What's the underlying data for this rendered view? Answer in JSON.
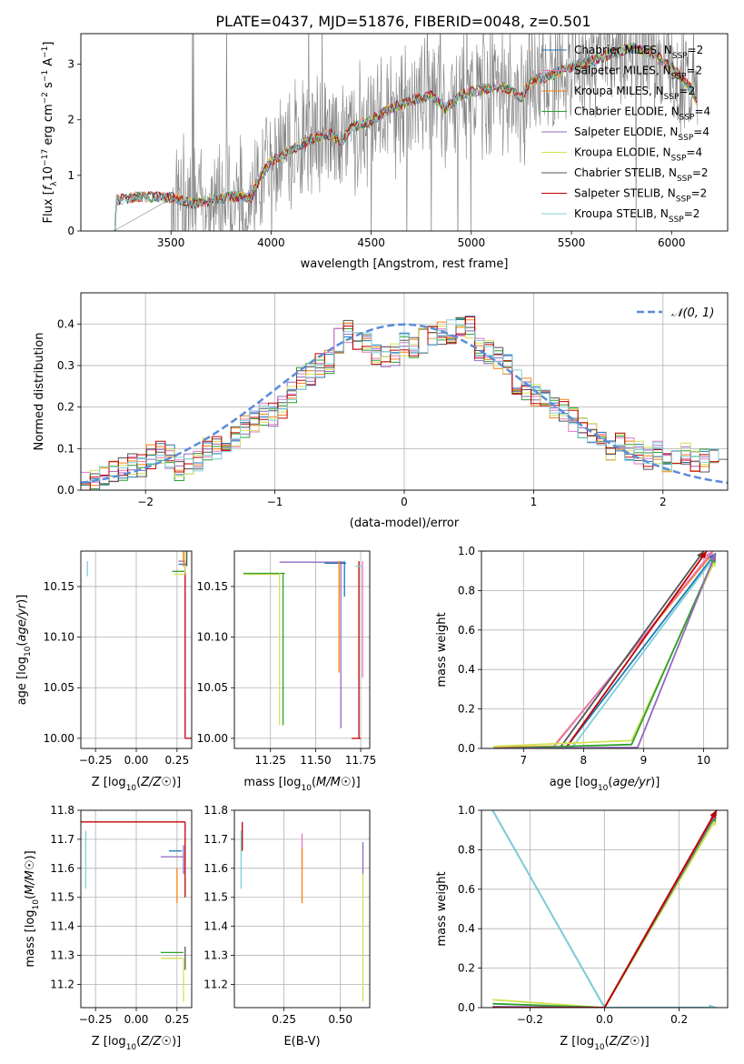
{
  "figure_title": "PLATE=0437, MJD=51876, FIBERID=0048, z=0.501",
  "colors": {
    "Chabrier MILES": "#1f77b4",
    "Salpeter MILES": "#e377c2",
    "Kroupa MILES": "#ff7f0e",
    "Chabrier ELODIE": "#2ca02c",
    "Salpeter ELODIE": "#9467bd",
    "Kroupa ELODIE": "#d4e157",
    "Chabrier STELIB": "#555555",
    "Salpeter STELIB": "#c00000",
    "Kroupa STELIB": "#7fcfd8",
    "data": "#808080",
    "gaussian": "#5b8bd9"
  },
  "chart_data": [
    {
      "id": "spectrum",
      "type": "line",
      "xlabel": "wavelength [Angstrom, rest frame]",
      "ylabel": "Flux [f_λ 10^-17 erg cm^-2 s^-1 A^-1]",
      "xlim": [
        3050,
        6280
      ],
      "ylim": [
        0,
        3.55
      ],
      "xticks": [
        3500,
        4000,
        4500,
        5000,
        5500,
        6000
      ],
      "yticks": [
        0,
        1,
        2,
        3
      ],
      "legend_position": "upper right",
      "legend": [
        {
          "model": "Chabrier MILES",
          "nssp": "2"
        },
        {
          "model": "Salpeter MILES",
          "nssp": "2"
        },
        {
          "model": "Kroupa MILES",
          "nssp": "2"
        },
        {
          "model": "Chabrier ELODIE",
          "nssp": "4"
        },
        {
          "model": "Salpeter ELODIE",
          "nssp": "4"
        },
        {
          "model": "Kroupa ELODIE",
          "nssp": "4"
        },
        {
          "model": "Chabrier STELIB",
          "nssp": "2"
        },
        {
          "model": "Salpeter STELIB",
          "nssp": "2"
        },
        {
          "model": "Kroupa STELIB",
          "nssp": "2"
        }
      ],
      "continuum_knots": [
        [
          3220,
          0
        ],
        [
          3225,
          0.55
        ],
        [
          3350,
          0.62
        ],
        [
          3500,
          0.6
        ],
        [
          3600,
          0.5
        ],
        [
          3700,
          0.55
        ],
        [
          3800,
          0.62
        ],
        [
          3900,
          0.6
        ],
        [
          3950,
          1.0
        ],
        [
          4000,
          1.25
        ],
        [
          4100,
          1.45
        ],
        [
          4200,
          1.65
        ],
        [
          4300,
          1.75
        ],
        [
          4350,
          1.6
        ],
        [
          4400,
          1.85
        ],
        [
          4500,
          2.0
        ],
        [
          4600,
          2.2
        ],
        [
          4700,
          2.35
        ],
        [
          4800,
          2.45
        ],
        [
          4870,
          2.2
        ],
        [
          4950,
          2.45
        ],
        [
          5050,
          2.55
        ],
        [
          5150,
          2.6
        ],
        [
          5250,
          2.4
        ],
        [
          5300,
          2.7
        ],
        [
          5400,
          2.8
        ],
        [
          5500,
          2.95
        ],
        [
          5600,
          3.05
        ],
        [
          5700,
          3.2
        ],
        [
          5800,
          3.3
        ],
        [
          5900,
          3.2
        ],
        [
          6000,
          2.95
        ],
        [
          6100,
          2.55
        ],
        [
          6130,
          2.3
        ]
      ],
      "data_noise": "grey observed spectrum fluctuating around the models from 3500 to 6130 Angstrom"
    },
    {
      "id": "residuals",
      "type": "histogram",
      "xlabel": "(data-model)/error",
      "ylabel": "Normed distribution",
      "xlim": [
        -2.5,
        2.5
      ],
      "ylim": [
        0,
        0.475
      ],
      "xticks": [
        -2,
        -1,
        0,
        1,
        2
      ],
      "yticks": [
        0,
        0.1,
        0.2,
        0.3,
        0.4
      ],
      "grid": true,
      "legend_position": "upper right",
      "legend_label": "𝒩(0, 1)",
      "bin_width": 0.1,
      "envelope": [
        0.015,
        0.02,
        0.03,
        0.04,
        0.05,
        0.06,
        0.06,
        0.08,
        0.09,
        0.08,
        0.05,
        0.06,
        0.07,
        0.1,
        0.1,
        0.11,
        0.13,
        0.15,
        0.17,
        0.18,
        0.18,
        0.2,
        0.24,
        0.27,
        0.28,
        0.3,
        0.31,
        0.36,
        0.38,
        0.36,
        0.35,
        0.33,
        0.32,
        0.33,
        0.35,
        0.34,
        0.36,
        0.37,
        0.38,
        0.38,
        0.39,
        0.39,
        0.34,
        0.33,
        0.32,
        0.3,
        0.26,
        0.24,
        0.23,
        0.22,
        0.2,
        0.19,
        0.17,
        0.15,
        0.14,
        0.12,
        0.1,
        0.11,
        0.1,
        0.09,
        0.08,
        0.09,
        0.07,
        0.08,
        0.09,
        0.07,
        0.07,
        0.08,
        0.06
      ]
    },
    {
      "id": "age_vs_Z",
      "type": "scatter",
      "xlabel": "Z [log10(Z/Z☉)]",
      "ylabel": "age  [log10(age/yr)]",
      "xlim": [
        -0.34,
        0.34
      ],
      "ylim": [
        9.99,
        10.185
      ],
      "xticks": [
        -0.25,
        0.0,
        0.25
      ],
      "yticks": [
        10.0,
        10.05,
        10.1,
        10.15
      ],
      "grid": true,
      "segments": [
        {
          "model": "Kroupa STELIB",
          "x": -0.3,
          "y": 10.16,
          "dx": 0,
          "dy": 0.015
        },
        {
          "model": "Salpeter STELIB",
          "x": 0.3,
          "y": 10.0,
          "dx": 0.6,
          "dy": 0
        },
        {
          "model": "Salpeter STELIB",
          "x": 0.3,
          "y": 10.0,
          "dx": 0,
          "dy": 0.175
        },
        {
          "model": "Salpeter ELODIE",
          "x": 0.26,
          "y": 10.175,
          "dx": 0.05,
          "dy": 0
        },
        {
          "model": "Salpeter ELODIE",
          "x": 0.29,
          "y": 10.17,
          "dx": 0,
          "dy": 0.06
        },
        {
          "model": "Kroupa ELODIE",
          "x": 0.23,
          "y": 10.162,
          "dx": 0.07,
          "dy": 0
        },
        {
          "model": "Chabrier ELODIE",
          "x": 0.22,
          "y": 10.165,
          "dx": 0.08,
          "dy": 0
        },
        {
          "model": "Kroupa ELODIE",
          "x": 0.3,
          "y": 10.163,
          "dx": 0,
          "dy": 0.06
        },
        {
          "model": "Chabrier MILES",
          "x": 0.26,
          "y": 10.172,
          "dx": 0.05,
          "dy": 0
        },
        {
          "model": "Kroupa MILES",
          "x": 0.29,
          "y": 10.17,
          "dx": 0,
          "dy": 0.05
        },
        {
          "model": "Chabrier STELIB",
          "x": 0.31,
          "y": 10.17,
          "dx": 0,
          "dy": 0.16
        }
      ]
    },
    {
      "id": "age_vs_mass",
      "type": "scatter",
      "xlabel": "mass [log10(M/M☉)]",
      "ylabel": "",
      "xlim": [
        11.05,
        11.8
      ],
      "ylim": [
        9.99,
        10.185
      ],
      "xticks": [
        11.25,
        11.5,
        11.75
      ],
      "yticks": [
        10.0,
        10.05,
        10.1,
        10.15
      ],
      "grid": true,
      "segments": [
        {
          "model": "Kroupa ELODIE",
          "x": 11.1,
          "y": 10.162,
          "dx": 0.2,
          "dy": 0
        },
        {
          "model": "Chabrier ELODIE",
          "x": 11.1,
          "y": 10.163,
          "dx": 0.23,
          "dy": 0
        },
        {
          "model": "Kroupa ELODIE",
          "x": 11.3,
          "y": 10.013,
          "dx": 0,
          "dy": 0.15
        },
        {
          "model": "Chabrier ELODIE",
          "x": 11.32,
          "y": 10.013,
          "dx": 0,
          "dy": 0.15
        },
        {
          "model": "Salpeter ELODIE",
          "x": 11.3,
          "y": 10.174,
          "dx": 0.36,
          "dy": 0
        },
        {
          "model": "Salpeter ELODIE",
          "x": 11.64,
          "y": 10.01,
          "dx": 0,
          "dy": 0.165
        },
        {
          "model": "Chabrier MILES",
          "x": 11.55,
          "y": 10.173,
          "dx": 0.12,
          "dy": 0
        },
        {
          "model": "Chabrier MILES",
          "x": 11.66,
          "y": 10.14,
          "dx": 0,
          "dy": 0.035
        },
        {
          "model": "Kroupa MILES",
          "x": 11.63,
          "y": 10.065,
          "dx": 0,
          "dy": 0.11
        },
        {
          "model": "Salpeter STELIB",
          "x": 11.7,
          "y": 10.0,
          "dx": 0.05,
          "dy": 0
        },
        {
          "model": "Salpeter STELIB",
          "x": 11.74,
          "y": 10.0,
          "dx": 0,
          "dy": 0.175
        },
        {
          "model": "Salpeter MILES",
          "x": 11.76,
          "y": 10.06,
          "dx": 0,
          "dy": 0.115
        },
        {
          "model": "Kroupa STELIB",
          "x": 11.72,
          "y": 10.17,
          "dx": 0.04,
          "dy": 0
        }
      ]
    },
    {
      "id": "weight_vs_age",
      "type": "line",
      "xlabel": "age  [log10(age/yr)]",
      "ylabel": "mass weight",
      "xlim": [
        6.3,
        10.4
      ],
      "ylim": [
        0,
        1.0
      ],
      "xticks": [
        7,
        8,
        9,
        10
      ],
      "yticks": [
        0,
        0.2,
        0.4,
        0.6,
        0.8,
        1.0
      ],
      "grid": true,
      "series": [
        {
          "model": "Kroupa MILES",
          "x": [
            6.5,
            7.5,
            10.15
          ],
          "y": [
            0.005,
            0.01,
            0.99
          ]
        },
        {
          "model": "Salpeter MILES",
          "x": [
            6.5,
            7.5,
            10.15
          ],
          "y": [
            0.0,
            0.005,
            1.0
          ]
        },
        {
          "model": "Chabrier MILES",
          "x": [
            6.5,
            7.7,
            10.2
          ],
          "y": [
            0.0,
            0.0,
            0.99
          ]
        },
        {
          "model": "Chabrier STELIB",
          "x": [
            6.5,
            7.6,
            10.0
          ],
          "y": [
            0.0,
            0.0,
            1.0
          ]
        },
        {
          "model": "Salpeter STELIB",
          "x": [
            6.5,
            7.7,
            10.05
          ],
          "y": [
            0.0,
            0.0,
            1.0
          ]
        },
        {
          "model": "Kroupa STELIB",
          "x": [
            6.5,
            7.8,
            10.2
          ],
          "y": [
            0.0,
            0.0,
            0.98
          ]
        },
        {
          "model": "Kroupa ELODIE",
          "x": [
            6.5,
            8.8,
            10.2
          ],
          "y": [
            0.01,
            0.04,
            0.96
          ]
        },
        {
          "model": "Chabrier ELODIE",
          "x": [
            6.5,
            8.8,
            10.2
          ],
          "y": [
            0.0,
            0.02,
            0.98
          ]
        },
        {
          "model": "Salpeter ELODIE",
          "x": [
            6.5,
            8.9,
            10.2
          ],
          "y": [
            0.0,
            0.005,
            0.99
          ]
        }
      ]
    },
    {
      "id": "mass_vs_Z",
      "type": "scatter",
      "xlabel": "Z [log10(Z/Z☉)]",
      "ylabel": "mass [log10(M/M☉)]",
      "xlim": [
        -0.34,
        0.34
      ],
      "ylim": [
        11.12,
        11.8
      ],
      "xticks": [
        -0.25,
        0.0,
        0.25
      ],
      "yticks": [
        11.2,
        11.3,
        11.4,
        11.5,
        11.6,
        11.7,
        11.8
      ],
      "grid": true,
      "segments": [
        {
          "model": "Kroupa STELIB",
          "x": -0.31,
          "y": 11.53,
          "dx": 0,
          "dy": 0.2
        },
        {
          "model": "Salpeter STELIB",
          "x": -0.35,
          "y": 11.76,
          "dx": 0.65,
          "dy": 0
        },
        {
          "model": "Salpeter STELIB",
          "x": 0.3,
          "y": 11.5,
          "dx": 0,
          "dy": 0.26
        },
        {
          "model": "Chabrier MILES",
          "x": 0.2,
          "y": 11.66,
          "dx": 0.08,
          "dy": 0
        },
        {
          "model": "Salpeter ELODIE",
          "x": 0.15,
          "y": 11.64,
          "dx": 0.14,
          "dy": 0
        },
        {
          "model": "Salpeter ELODIE",
          "x": 0.29,
          "y": 11.58,
          "dx": 0,
          "dy": 0.1
        },
        {
          "model": "Kroupa MILES",
          "x": 0.25,
          "y": 11.48,
          "dx": 0,
          "dy": 0.12
        },
        {
          "model": "Chabrier ELODIE",
          "x": 0.15,
          "y": 11.31,
          "dx": 0.14,
          "dy": 0
        },
        {
          "model": "Kroupa ELODIE",
          "x": 0.15,
          "y": 11.29,
          "dx": 0.14,
          "dy": 0
        },
        {
          "model": "Kroupa ELODIE",
          "x": 0.29,
          "y": 11.14,
          "dx": 0,
          "dy": 0.15
        },
        {
          "model": "Chabrier STELIB",
          "x": 0.3,
          "y": 11.25,
          "dx": 0,
          "dy": 0.08
        }
      ]
    },
    {
      "id": "mass_vs_EBV",
      "type": "scatter",
      "xlabel": "E(B-V)",
      "ylabel": "",
      "xlim": [
        0.03,
        0.63
      ],
      "ylim": [
        11.12,
        11.8
      ],
      "xticks": [
        0.25,
        0.5
      ],
      "yticks": [
        11.2,
        11.3,
        11.4,
        11.5,
        11.6,
        11.7,
        11.8
      ],
      "grid": true,
      "segments": [
        {
          "model": "Kroupa STELIB",
          "x": 0.06,
          "y": 11.53,
          "dx": 0,
          "dy": 0.2
        },
        {
          "model": "Salpeter STELIB",
          "x": 0.065,
          "y": 11.66,
          "dx": 0,
          "dy": 0.1
        },
        {
          "model": "Salpeter MILES",
          "x": 0.33,
          "y": 11.6,
          "dx": 0,
          "dy": 0.12
        },
        {
          "model": "Kroupa MILES",
          "x": 0.33,
          "y": 11.48,
          "dx": 0,
          "dy": 0.19
        },
        {
          "model": "Salpeter ELODIE",
          "x": 0.6,
          "y": 11.58,
          "dx": 0,
          "dy": 0.11
        },
        {
          "model": "Kroupa ELODIE",
          "x": 0.6,
          "y": 11.14,
          "dx": 0,
          "dy": 0.44
        }
      ]
    },
    {
      "id": "weight_vs_Z",
      "type": "line",
      "xlabel": "Z [log10(Z/Z☉)]",
      "ylabel": "mass weight",
      "xlim": [
        -0.33,
        0.33
      ],
      "ylim": [
        0,
        1.0
      ],
      "xticks": [
        -0.2,
        0.0,
        0.2
      ],
      "yticks": [
        0,
        0.2,
        0.4,
        0.6,
        0.8,
        1.0
      ],
      "grid": true,
      "series": [
        {
          "model": "Chabrier MILES",
          "x": [
            -0.3,
            0.0,
            0.3
          ],
          "y": [
            1.0,
            0.0,
            0.0
          ]
        },
        {
          "model": "Kroupa STELIB",
          "x": [
            -0.3,
            0.0,
            0.3
          ],
          "y": [
            1.0,
            0.0,
            0.0
          ]
        },
        {
          "model": "Kroupa ELODIE",
          "x": [
            -0.3,
            0.0,
            0.3
          ],
          "y": [
            0.04,
            0.0,
            0.96
          ]
        },
        {
          "model": "Chabrier ELODIE",
          "x": [
            -0.3,
            0.0,
            0.3
          ],
          "y": [
            0.02,
            0.0,
            0.98
          ]
        },
        {
          "model": "Salpeter ELODIE",
          "x": [
            -0.3,
            0.0,
            0.3
          ],
          "y": [
            0.005,
            0.0,
            0.99
          ]
        },
        {
          "model": "Kroupa MILES",
          "x": [
            -0.3,
            0.0,
            0.3
          ],
          "y": [
            0.0,
            0.0,
            1.0
          ]
        },
        {
          "model": "Salpeter MILES",
          "x": [
            -0.3,
            0.0,
            0.3
          ],
          "y": [
            0.0,
            0.0,
            1.0
          ]
        },
        {
          "model": "Chabrier STELIB",
          "x": [
            -0.3,
            0.0,
            0.3
          ],
          "y": [
            0.0,
            0.0,
            1.0
          ]
        },
        {
          "model": "Salpeter STELIB",
          "x": [
            -0.3,
            0.0,
            0.3
          ],
          "y": [
            0.0,
            0.0,
            1.0
          ]
        }
      ]
    }
  ]
}
